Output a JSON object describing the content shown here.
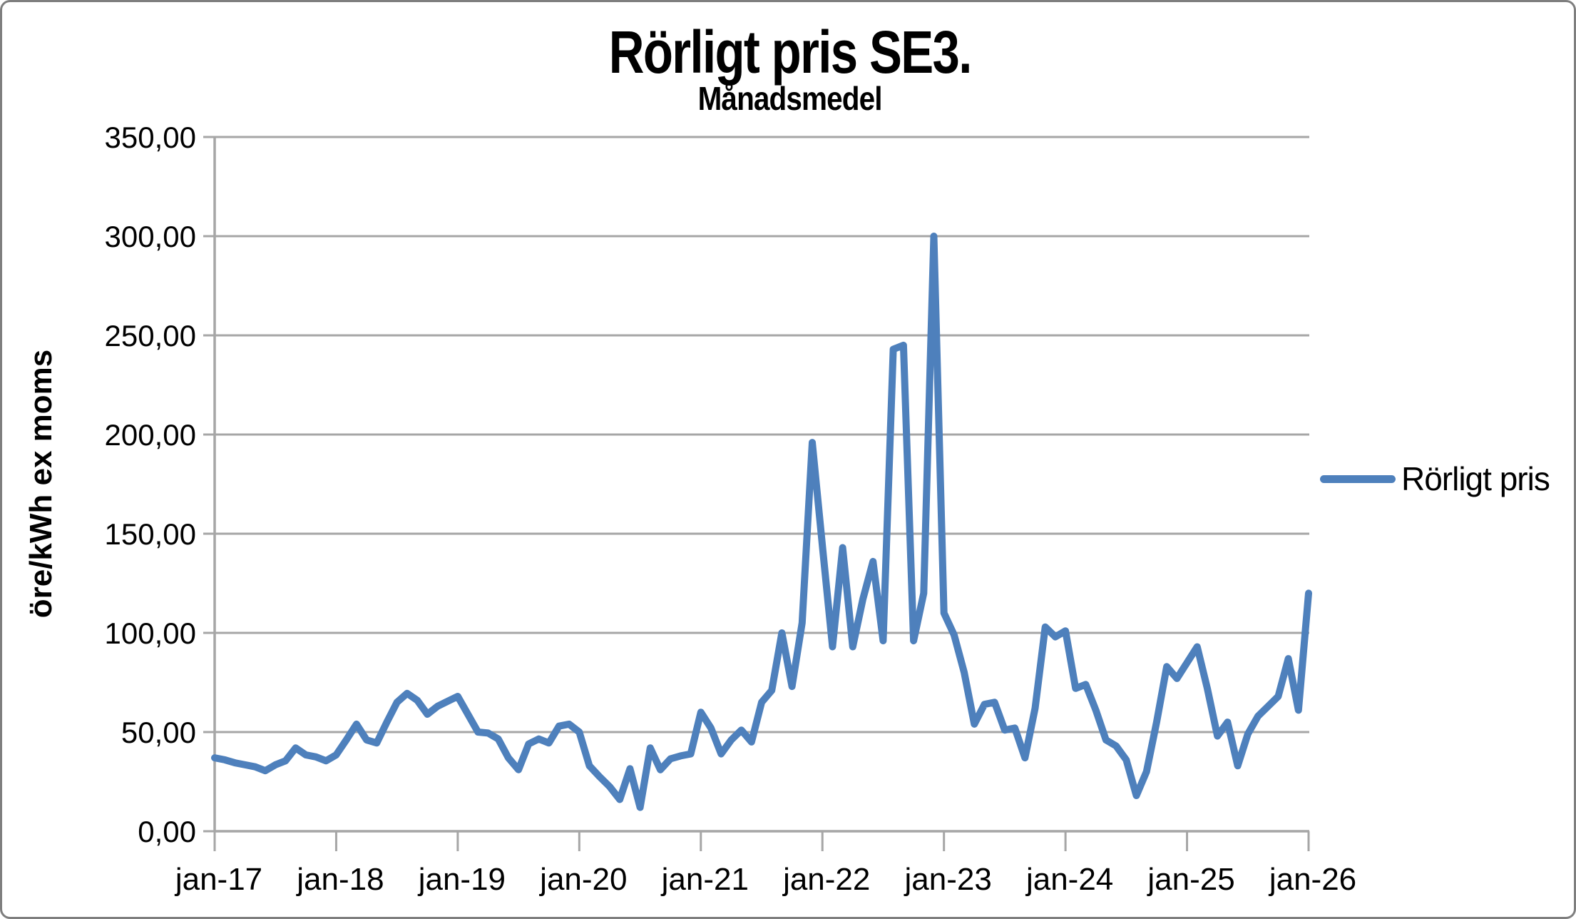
{
  "title": "Rörligt pris SE3.",
  "subtitle": "Månadsmedel",
  "y_axis_title": "öre/kWh ex moms",
  "legend": {
    "label": "Rörligt pris"
  },
  "colors": {
    "series": "#4E80BC",
    "grid": "#A6A6A6",
    "axis": "#A6A6A6",
    "frame_border": "#7F7F7F",
    "text": "#000000",
    "background": "#FFFFFF"
  },
  "chart_data": {
    "type": "line",
    "title": "Rörligt pris SE3.",
    "subtitle": "Månadsmedel",
    "ylabel": "öre/kWh ex moms",
    "xlabel": "",
    "ylim": [
      0,
      350
    ],
    "y_step": 50,
    "grid": "horizontal",
    "legend_position": "right",
    "y_tick_labels": [
      "350,00",
      "300,00",
      "250,00",
      "200,00",
      "150,00",
      "100,00",
      "50,00",
      "0,00"
    ],
    "x_tick_labels": [
      "jan-17",
      "jan-18",
      "jan-19",
      "jan-20",
      "jan-21",
      "jan-22",
      "jan-23",
      "jan-24",
      "jan-25",
      "jan-26"
    ],
    "series": [
      {
        "name": "Rörligt pris",
        "start_month": "jan-17",
        "interval_months": 1,
        "values": [
          37,
          36,
          34.5,
          33.5,
          32.5,
          30.5,
          33.5,
          35.5,
          42,
          38.5,
          37.5,
          35.5,
          38.5,
          46,
          54,
          46,
          44.5,
          55,
          65,
          69.5,
          66,
          59,
          63,
          65.5,
          68,
          59,
          50,
          49.5,
          46.5,
          37,
          31,
          44,
          46.5,
          44.5,
          53,
          54,
          50,
          33,
          27.5,
          22.5,
          16,
          31.5,
          12,
          42,
          31,
          36.5,
          38,
          39,
          60,
          52,
          39,
          46,
          51,
          45,
          65,
          71,
          100,
          73,
          105,
          196,
          144,
          93,
          143,
          93,
          117,
          136,
          96,
          243,
          245,
          96,
          120,
          300,
          110,
          99,
          80,
          54,
          64,
          65,
          51,
          52,
          37,
          62,
          103,
          98,
          101,
          72,
          74,
          61,
          46,
          43,
          36,
          18,
          30,
          55,
          83,
          77,
          85,
          93,
          72,
          48,
          55,
          33,
          49,
          58,
          63,
          68,
          87,
          61,
          120
        ]
      }
    ]
  }
}
